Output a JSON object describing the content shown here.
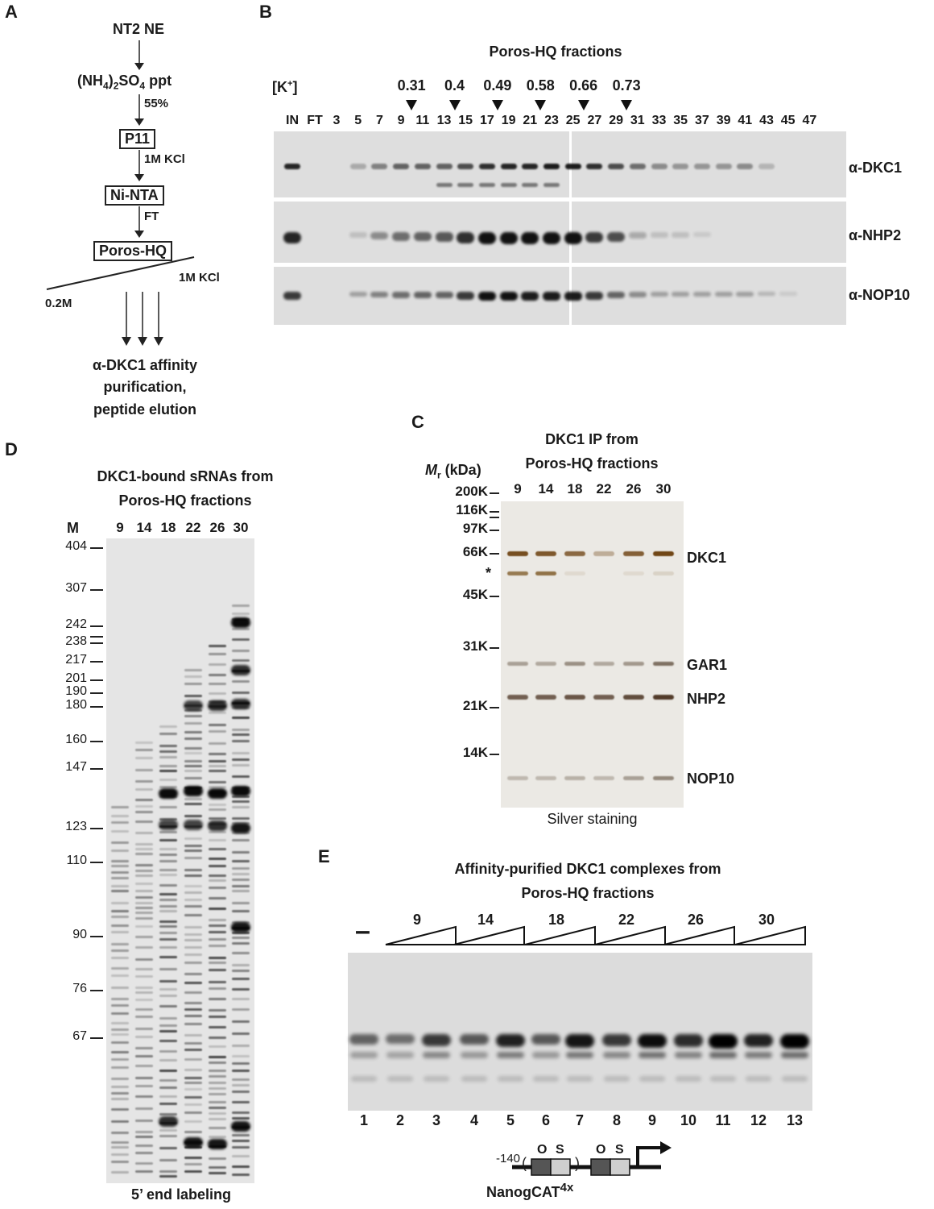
{
  "panels": {
    "A": {
      "letter": "A",
      "steps": [
        "NT2 NE",
        "(NH",
        "4",
        ")",
        "2",
        "SO",
        "4",
        " ppt"
      ],
      "step_nt2": "NT2 NE",
      "step_ppt_a": "(NH",
      "step_ppt_sub1": "4",
      "step_ppt_b": ")",
      "step_ppt_sub2": "2",
      "step_ppt_c": "SO",
      "step_ppt_sub3": "4",
      "step_ppt_d": " ppt",
      "pct": "55%",
      "p11": "P11",
      "kcl1": "1M KCl",
      "nintа": "Ni-NTA",
      "ninta": "Ni-NTA",
      "ft": "FT",
      "poros": "Poros-HQ",
      "kcl2": "1M KCl",
      "low": "0.2M",
      "affinity_1": "α-DKC1 affinity",
      "affinity_2": "purification,",
      "affinity_3": "peptide elution"
    },
    "B": {
      "letter": "B",
      "title": "Poros-HQ fractions",
      "k_label_a": "[K",
      "k_label_sup": "+",
      "k_label_b": "]",
      "k_values": [
        "0.31",
        "0.4",
        "0.49",
        "0.58",
        "0.66",
        "0.73"
      ],
      "lanes": [
        "IN",
        "FT",
        "3",
        "5",
        "7",
        "9",
        "11",
        "13",
        "15",
        "17",
        "19",
        "21",
        "23",
        "25",
        "27",
        "29",
        "31",
        "33",
        "35",
        "37",
        "39",
        "41",
        "43",
        "45",
        "47"
      ],
      "antibodies": [
        "α-DKC1",
        "α-NHP2",
        "α-NOP10"
      ]
    },
    "C": {
      "letter": "C",
      "title_1": "DKC1 IP from",
      "title_2": "Poros-HQ fractions",
      "mr_a": "M",
      "mr_sub": "r",
      "mr_b": " (kDa)",
      "lanes": [
        "9",
        "14",
        "18",
        "22",
        "26",
        "30"
      ],
      "markers": [
        "200K",
        "116K",
        "97K",
        "66K",
        "45K",
        "31K",
        "21K",
        "14K"
      ],
      "asterisk": "*",
      "bands": [
        "DKC1",
        "GAR1",
        "NHP2",
        "NOP10"
      ],
      "footer": "Silver staining"
    },
    "D": {
      "letter": "D",
      "title_1": "DKC1-bound sRNAs from",
      "title_2": "Poros-HQ fractions",
      "m_label": "M",
      "lanes": [
        "9",
        "14",
        "18",
        "22",
        "26",
        "30"
      ],
      "markers": [
        "404",
        "307",
        "242",
        "238",
        "217",
        "201",
        "190",
        "180",
        "160",
        "147",
        "123",
        "110",
        "90",
        "76",
        "67"
      ],
      "footer": "5’ end labeling"
    },
    "E": {
      "letter": "E",
      "title_1": "Affinity-purified DKC1 complexes from",
      "title_2": "Poros-HQ fractions",
      "dash": "–",
      "groups": [
        "9",
        "14",
        "18",
        "22",
        "26",
        "30"
      ],
      "lanes": [
        "1",
        "2",
        "3",
        "4",
        "5",
        "6",
        "7",
        "8",
        "9",
        "10",
        "11",
        "12",
        "13"
      ],
      "promoter_pos": "-140",
      "paren_open": "(",
      "paren_close": ")",
      "box_o": "O",
      "box_s": "S",
      "construct_a": "NanogCAT",
      "construct_sub": "4x"
    }
  }
}
